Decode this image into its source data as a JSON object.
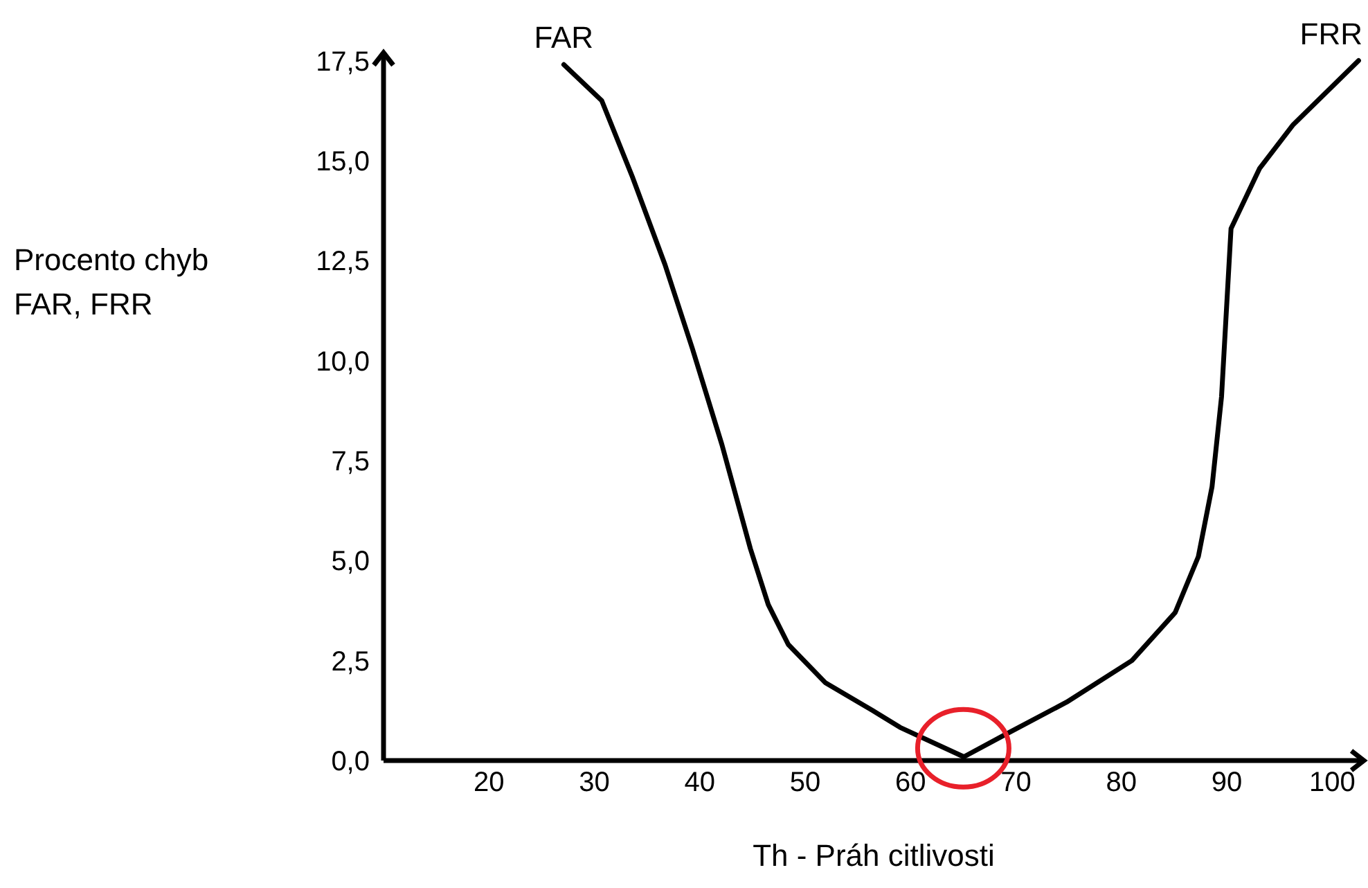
{
  "chart_data": {
    "type": "line",
    "xlabel": "Th - Práh citlivosti",
    "ylabel": "Procento chyb\nFAR, FRR",
    "series": [
      {
        "name": "FAR",
        "color": "#000000",
        "x": [
          27.1,
          30.7,
          33.6,
          36.7,
          39.3,
          42.1,
          44.8,
          46.5,
          48.4,
          51.9,
          56.4,
          59.0,
          65.0
        ],
        "values": [
          17.4,
          16.5,
          14.6,
          12.4,
          10.3,
          7.9,
          5.3,
          3.9,
          2.9,
          1.95,
          1.25,
          0.83,
          0.1
        ]
      },
      {
        "name": "FRR",
        "color": "#000000",
        "x": [
          65.1,
          68.9,
          74.8,
          81.0,
          85.1,
          87.3,
          88.6,
          89.5,
          90.4,
          93.1,
          96.3,
          102.5
        ],
        "values": [
          0.1,
          0.64,
          1.46,
          2.5,
          3.7,
          5.1,
          6.85,
          9.1,
          13.3,
          14.8,
          15.9,
          17.5
        ]
      }
    ],
    "xlim": [
      10,
      103
    ],
    "xticks": [
      20,
      30,
      40,
      50,
      60,
      70,
      80,
      90,
      100
    ],
    "ylim": [
      0,
      17.7
    ],
    "yticks": [
      {
        "value": 0,
        "label": "0,0"
      },
      {
        "value": 2.5,
        "label": "2,5"
      },
      {
        "value": 5,
        "label": "5,0"
      },
      {
        "value": 7.5,
        "label": "7,5"
      },
      {
        "value": 10,
        "label": "10,0"
      },
      {
        "value": 12.5,
        "label": "12,5"
      },
      {
        "value": 15,
        "label": "15,0"
      },
      {
        "value": 17.5,
        "label": "17,5"
      }
    ],
    "grid": false,
    "legend": false,
    "marker": "none",
    "line_style": "solid"
  }
}
